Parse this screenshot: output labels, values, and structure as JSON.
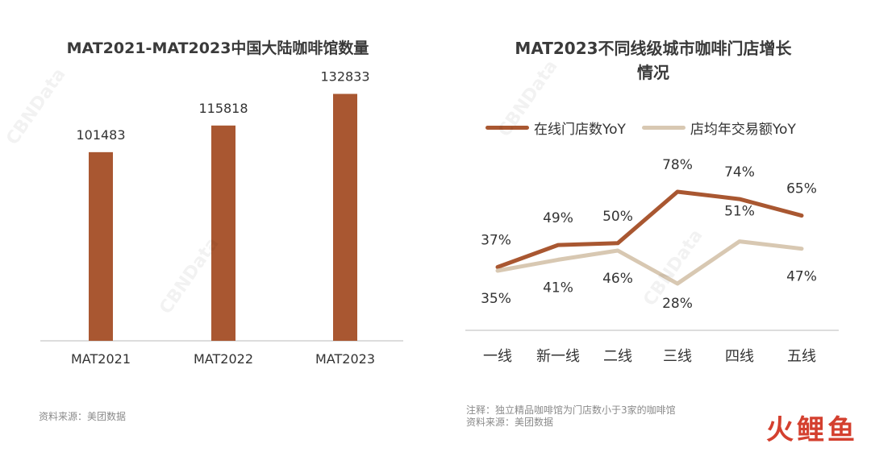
{
  "left_chart": {
    "title": "MAT2021-MAT2023中国大陆咖啡馆数量",
    "source": "资料来源：美团数据"
  },
  "right_chart": {
    "title_line1": "MAT2023不同线级城市咖啡门店增长",
    "title_line2": "情况",
    "note": "注释：独立精品咖啡馆为门店数小于3家的咖啡馆",
    "source": "资料来源：美团数据"
  },
  "watermark_text": "CBNData",
  "brand_logo": "火鲤鱼",
  "colors": {
    "bar": "#a95731",
    "line_primary": "#a95731",
    "line_secondary": "#d8c8b2",
    "axis": "#bbbbbb",
    "text": "#333333"
  },
  "chart_data": [
    {
      "type": "bar",
      "title": "MAT2021-MAT2023中国大陆咖啡馆数量",
      "categories": [
        "MAT2021",
        "MAT2022",
        "MAT2023"
      ],
      "values": [
        101483,
        115818,
        132833
      ],
      "data_labels": [
        "101483",
        "115818",
        "132833"
      ],
      "ylim": [
        0,
        140000
      ],
      "grid": false
    },
    {
      "type": "line",
      "title": "MAT2023不同线级城市咖啡门店增长情况",
      "categories": [
        "一线",
        "新一线",
        "二线",
        "三线",
        "四线",
        "五线"
      ],
      "series": [
        {
          "name": "在线门店数YoY",
          "values": [
            37,
            49,
            50,
            78,
            74,
            65
          ],
          "labels": [
            "37%",
            "49%",
            "50%",
            "78%",
            "74%",
            "65%"
          ]
        },
        {
          "name": "店均年交易额YoY",
          "values": [
            35,
            41,
            46,
            28,
            51,
            47
          ],
          "labels": [
            "35%",
            "41%",
            "46%",
            "28%",
            "51%",
            "47%"
          ]
        }
      ],
      "legend": "top",
      "grid": false
    }
  ]
}
